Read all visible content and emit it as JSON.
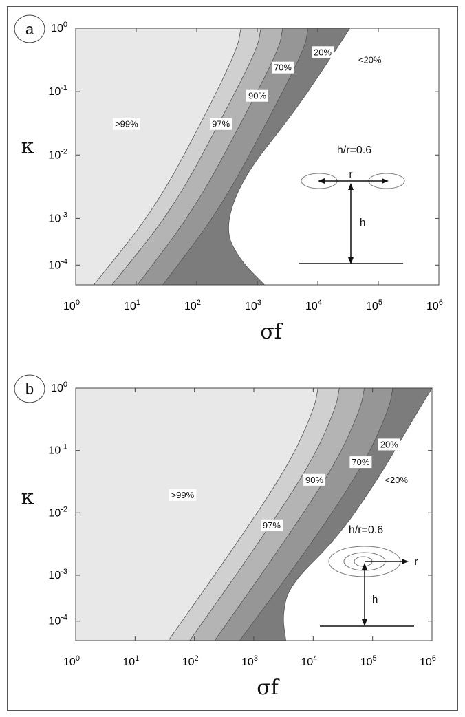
{
  "chart_data": [
    {
      "panel_label": "a",
      "type": "contour",
      "xlabel": "σf",
      "ylabel": "κ",
      "x_scale": "log",
      "y_scale": "log",
      "x_range": [
        1,
        1000000
      ],
      "y_range": [
        5e-05,
        1
      ],
      "x_ticks": [
        {
          "base": "10",
          "exp": "0"
        },
        {
          "base": "10",
          "exp": "1"
        },
        {
          "base": "10",
          "exp": "2"
        },
        {
          "base": "10",
          "exp": "3"
        },
        {
          "base": "10",
          "exp": "4"
        },
        {
          "base": "10",
          "exp": "5"
        },
        {
          "base": "10",
          "exp": "6"
        }
      ],
      "y_ticks": [
        {
          "base": "10",
          "exp": "0"
        },
        {
          "base": "10",
          "exp": "-1"
        },
        {
          "base": "10",
          "exp": "-2"
        },
        {
          "base": "10",
          "exp": "-3"
        },
        {
          "base": "10",
          "exp": "-4"
        }
      ],
      "regions": [
        {
          "label": ">99%",
          "color": "#e8e8e8"
        },
        {
          "label": "97%",
          "color": "#d0d0d0"
        },
        {
          "label": "90%",
          "color": "#b4b4b4"
        },
        {
          "label": "70%",
          "color": "#969696"
        },
        {
          "label": "20%",
          "color": "#7c7c7c"
        },
        {
          "label": "<20%",
          "color": "#ffffff"
        }
      ],
      "note": "h/r=0.6",
      "diagram_labels": {
        "r": "r",
        "h": "h"
      }
    },
    {
      "panel_label": "b",
      "type": "contour",
      "xlabel": "σf",
      "ylabel": "κ",
      "x_scale": "log",
      "y_scale": "log",
      "x_range": [
        1,
        1000000
      ],
      "y_range": [
        5e-05,
        1
      ],
      "x_ticks": [
        {
          "base": "10",
          "exp": "0"
        },
        {
          "base": "10",
          "exp": "1"
        },
        {
          "base": "10",
          "exp": "2"
        },
        {
          "base": "10",
          "exp": "3"
        },
        {
          "base": "10",
          "exp": "4"
        },
        {
          "base": "10",
          "exp": "5"
        },
        {
          "base": "10",
          "exp": "6"
        }
      ],
      "y_ticks": [
        {
          "base": "10",
          "exp": "0"
        },
        {
          "base": "10",
          "exp": "-1"
        },
        {
          "base": "10",
          "exp": "-2"
        },
        {
          "base": "10",
          "exp": "-3"
        },
        {
          "base": "10",
          "exp": "-4"
        }
      ],
      "regions": [
        {
          "label": ">99%",
          "color": "#e8e8e8"
        },
        {
          "label": "97%",
          "color": "#d0d0d0"
        },
        {
          "label": "90%",
          "color": "#b4b4b4"
        },
        {
          "label": "70%",
          "color": "#969696"
        },
        {
          "label": "20%",
          "color": "#7c7c7c"
        },
        {
          "label": "<20%",
          "color": "#ffffff"
        }
      ],
      "note": "h/r=0.6",
      "diagram_labels": {
        "r": "r",
        "h": "h"
      }
    }
  ]
}
